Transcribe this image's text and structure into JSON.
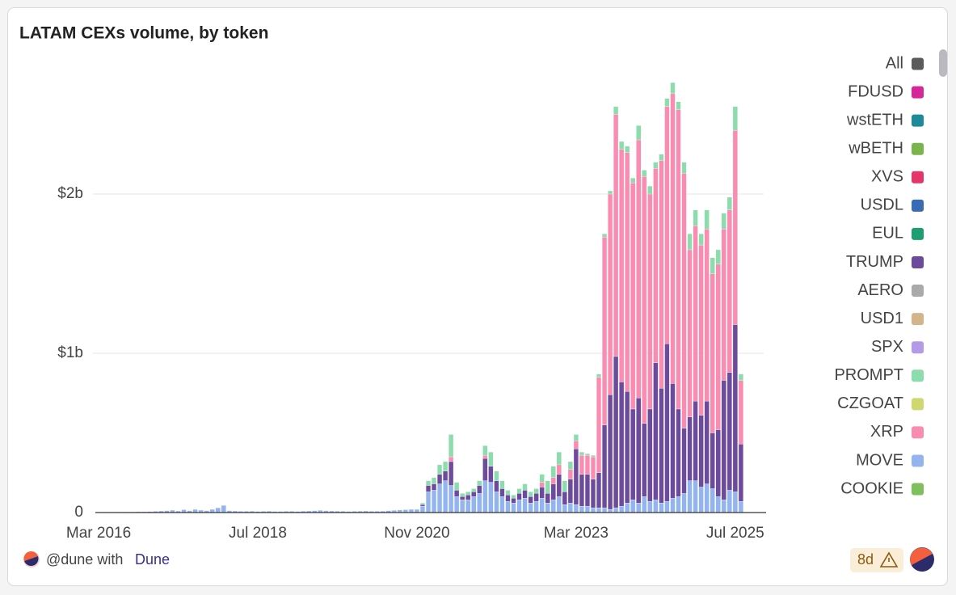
{
  "chart_data": {
    "type": "bar",
    "stacked": true,
    "title": "LATAM CEXs volume, by token",
    "x": [
      "2016-03",
      "2016-04",
      "2016-05",
      "2016-06",
      "2016-07",
      "2016-08",
      "2016-09",
      "2016-10",
      "2016-11",
      "2016-12",
      "2017-01",
      "2017-02",
      "2017-03",
      "2017-04",
      "2017-05",
      "2017-06",
      "2017-07",
      "2017-08",
      "2017-09",
      "2017-10",
      "2017-11",
      "2017-12",
      "2018-01",
      "2018-02",
      "2018-03",
      "2018-04",
      "2018-05",
      "2018-06",
      "2018-07",
      "2018-08",
      "2018-09",
      "2018-10",
      "2018-11",
      "2018-12",
      "2019-01",
      "2019-02",
      "2019-03",
      "2019-04",
      "2019-05",
      "2019-06",
      "2019-07",
      "2019-08",
      "2019-09",
      "2019-10",
      "2019-11",
      "2019-12",
      "2020-01",
      "2020-02",
      "2020-03",
      "2020-04",
      "2020-05",
      "2020-06",
      "2020-07",
      "2020-08",
      "2020-09",
      "2020-10",
      "2020-11",
      "2020-12",
      "2021-01",
      "2021-02",
      "2021-03",
      "2021-04",
      "2021-05",
      "2021-06",
      "2021-07",
      "2021-08",
      "2021-09",
      "2021-10",
      "2021-11",
      "2021-12",
      "2022-01",
      "2022-02",
      "2022-03",
      "2022-04",
      "2022-05",
      "2022-06",
      "2022-07",
      "2022-08",
      "2022-09",
      "2022-10",
      "2022-11",
      "2022-12",
      "2023-01",
      "2023-02",
      "2023-03",
      "2023-04",
      "2023-05",
      "2023-06",
      "2023-07",
      "2023-08",
      "2023-09",
      "2023-10",
      "2023-11",
      "2023-12",
      "2024-01",
      "2024-02",
      "2024-03",
      "2024-04",
      "2024-05",
      "2024-06",
      "2024-07",
      "2024-08",
      "2024-09",
      "2024-10",
      "2024-11",
      "2024-12",
      "2025-01",
      "2025-02",
      "2025-03",
      "2025-04",
      "2025-05",
      "2025-06",
      "2025-07",
      "2025-08"
    ],
    "xlim": [
      "2016-02",
      "2025-12"
    ],
    "xticks": [
      {
        "value": "2016-03",
        "label": "Mar 2016"
      },
      {
        "value": "2018-07",
        "label": "Jul 2018"
      },
      {
        "value": "2020-11",
        "label": "Nov 2020"
      },
      {
        "value": "2023-03",
        "label": "Mar 2023"
      },
      {
        "value": "2025-07",
        "label": "Jul 2025"
      }
    ],
    "ylim": [
      0,
      2.84
    ],
    "yticks": [
      0,
      {
        "value": 1,
        "label": "$1b"
      },
      {
        "value": 2,
        "label": "$2b"
      }
    ],
    "grid": true,
    "series": [
      {
        "name": "All",
        "color": "#5b5b5b"
      },
      {
        "name": "FDUSD",
        "color": "#d6279a"
      },
      {
        "name": "wstETH",
        "color": "#1d8a99"
      },
      {
        "name": "wBETH",
        "color": "#79b54a"
      },
      {
        "name": "XVS",
        "color": "#e5366b"
      },
      {
        "name": "USDL",
        "color": "#3a6cb5"
      },
      {
        "name": "EUL",
        "color": "#1e9e70"
      },
      {
        "name": "TRUMP",
        "color": "#6d4b9c",
        "values": [
          0,
          0,
          0,
          0,
          0,
          0,
          0,
          0,
          0,
          0,
          0,
          0,
          0,
          0,
          0,
          0,
          0,
          0,
          0,
          0,
          0,
          0,
          0,
          0,
          0,
          0,
          0,
          0,
          0,
          0,
          0,
          0,
          0,
          0,
          0,
          0,
          0,
          0,
          0,
          0,
          0,
          0,
          0,
          0,
          0,
          0,
          0,
          0,
          0,
          0,
          0,
          0,
          0,
          0,
          0,
          0,
          0,
          0.01,
          0.04,
          0.04,
          0.06,
          0.06,
          0.15,
          0.04,
          0.02,
          0.03,
          0.03,
          0.05,
          0.14,
          0.1,
          0.07,
          0.05,
          0.04,
          0.03,
          0.04,
          0.05,
          0.04,
          0.05,
          0.07,
          0.06,
          0.1,
          0.14,
          0.08,
          0.15,
          0.35,
          0.2,
          0.2,
          0.18,
          0.22,
          0.52,
          0.72,
          0.95,
          0.78,
          0.7,
          0.57,
          0.66,
          0.46,
          0.58,
          0.86,
          0.72,
          0.99,
          0.72,
          0.55,
          0.41,
          0.4,
          0.5,
          0.45,
          0.52,
          0.35,
          0.42,
          0.75,
          0.74,
          1.05,
          0.36
        ]
      },
      {
        "name": "AERO",
        "color": "#aaaaaa"
      },
      {
        "name": "USD1",
        "color": "#d4b48a"
      },
      {
        "name": "SPX",
        "color": "#b39be8"
      },
      {
        "name": "PROMPT",
        "color": "#8ddcae",
        "values": [
          0,
          0,
          0,
          0,
          0,
          0,
          0,
          0,
          0,
          0,
          0,
          0,
          0,
          0,
          0,
          0,
          0,
          0,
          0,
          0,
          0,
          0,
          0,
          0,
          0,
          0,
          0,
          0,
          0,
          0,
          0,
          0,
          0,
          0,
          0,
          0,
          0,
          0,
          0,
          0,
          0,
          0,
          0,
          0,
          0,
          0,
          0,
          0,
          0,
          0,
          0,
          0,
          0,
          0,
          0,
          0,
          0,
          0.01,
          0.03,
          0.04,
          0.06,
          0.06,
          0.14,
          0.05,
          0.02,
          0.02,
          0.02,
          0.03,
          0.06,
          0.09,
          0.06,
          0.05,
          0.03,
          0.02,
          0.03,
          0.04,
          0.03,
          0.03,
          0.05,
          0.08,
          0.07,
          0.08,
          0.07,
          0.05,
          0.04,
          0.02,
          0.01,
          0.01,
          0.02,
          0.02,
          0.02,
          0.05,
          0.05,
          0.04,
          0.03,
          0.09,
          0.04,
          0.05,
          0.04,
          0.04,
          0.05,
          0.07,
          0.05,
          0.07,
          0.1,
          0.1,
          0.07,
          0.12,
          0.1,
          0.09,
          0.1,
          0.08,
          0.15,
          0.04
        ]
      },
      {
        "name": "CZGOAT",
        "color": "#cfd870"
      },
      {
        "name": "XRP",
        "color": "#f98cb0",
        "values": [
          0,
          0,
          0,
          0,
          0,
          0,
          0,
          0,
          0,
          0,
          0,
          0,
          0,
          0,
          0,
          0,
          0,
          0,
          0,
          0,
          0,
          0,
          0,
          0,
          0,
          0,
          0,
          0,
          0,
          0,
          0,
          0,
          0,
          0,
          0,
          0,
          0,
          0,
          0,
          0,
          0,
          0,
          0,
          0,
          0,
          0,
          0,
          0,
          0,
          0,
          0,
          0,
          0,
          0,
          0,
          0,
          0,
          0,
          0,
          0,
          0,
          0,
          0.03,
          0,
          0,
          0,
          0,
          0,
          0.02,
          0,
          0,
          0,
          0,
          0,
          0,
          0,
          0,
          0,
          0.03,
          0,
          0.04,
          0.06,
          0,
          0.06,
          0.05,
          0.12,
          0.12,
          0.14,
          0.6,
          1.18,
          1.26,
          1.52,
          1.46,
          1.5,
          1.42,
          1.62,
          1.55,
          1.35,
          1.22,
          1.43,
          1.49,
          1.82,
          1.88,
          1.6,
          1.05,
          1.1,
          1.07,
          1.08,
          1.0,
          1.04,
          0.95,
          1.02,
          1.22,
          0.4
        ]
      },
      {
        "name": "MOVE",
        "color": "#94b4f0",
        "values": [
          0.002,
          0.002,
          0.003,
          0.002,
          0.003,
          0.003,
          0.004,
          0.005,
          0.005,
          0.006,
          0.008,
          0.01,
          0.012,
          0.015,
          0.01,
          0.018,
          0.012,
          0.02,
          0.015,
          0.012,
          0.02,
          0.03,
          0.045,
          0.012,
          0.01,
          0.008,
          0.008,
          0.009,
          0.007,
          0.008,
          0.009,
          0.007,
          0.007,
          0.008,
          0.008,
          0.007,
          0.009,
          0.01,
          0.012,
          0.014,
          0.012,
          0.01,
          0.009,
          0.008,
          0.007,
          0.008,
          0.009,
          0.01,
          0.008,
          0.008,
          0.009,
          0.012,
          0.014,
          0.016,
          0.018,
          0.02,
          0.02,
          0.04,
          0.13,
          0.14,
          0.18,
          0.2,
          0.17,
          0.1,
          0.08,
          0.08,
          0.1,
          0.12,
          0.2,
          0.19,
          0.13,
          0.1,
          0.07,
          0.06,
          0.08,
          0.09,
          0.06,
          0.07,
          0.09,
          0.06,
          0.08,
          0.1,
          0.05,
          0.06,
          0.05,
          0.04,
          0.04,
          0.03,
          0.03,
          0.03,
          0.02,
          0.03,
          0.04,
          0.06,
          0.08,
          0.06,
          0.1,
          0.07,
          0.08,
          0.06,
          0.07,
          0.09,
          0.1,
          0.12,
          0.2,
          0.2,
          0.16,
          0.18,
          0.15,
          0.1,
          0.08,
          0.14,
          0.13,
          0.07
        ]
      },
      {
        "name": "COOKIE",
        "color": "#7fbf5e"
      }
    ]
  },
  "footer": {
    "attribution": "@dune with",
    "link": "Dune",
    "badge": "8d"
  }
}
